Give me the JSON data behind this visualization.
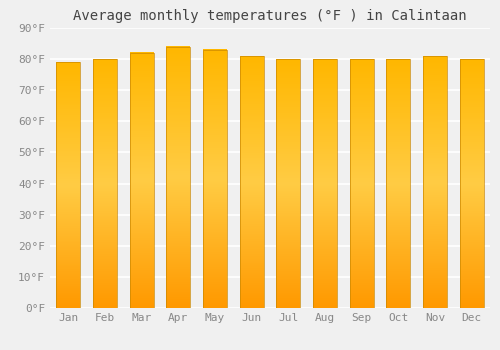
{
  "months": [
    "Jan",
    "Feb",
    "Mar",
    "Apr",
    "May",
    "Jun",
    "Jul",
    "Aug",
    "Sep",
    "Oct",
    "Nov",
    "Dec"
  ],
  "values": [
    79.0,
    80.0,
    82.0,
    84.0,
    83.0,
    81.0,
    80.0,
    80.0,
    80.0,
    80.0,
    81.0,
    80.0
  ],
  "bar_color_top": "#FFB700",
  "bar_color_mid": "#FFCC44",
  "bar_color_bottom": "#FF9900",
  "bar_edge_color": "#CC8800",
  "title": "Average monthly temperatures (°F ) in Calintaan",
  "ylim": [
    0,
    90
  ],
  "yticks": [
    0,
    10,
    20,
    30,
    40,
    50,
    60,
    70,
    80,
    90
  ],
  "ytick_labels": [
    "0°F",
    "10°F",
    "20°F",
    "30°F",
    "40°F",
    "50°F",
    "60°F",
    "70°F",
    "80°F",
    "90°F"
  ],
  "bg_color": "#F0F0F0",
  "grid_color": "#FFFFFF",
  "title_fontsize": 10,
  "tick_fontsize": 8,
  "bar_width": 0.65
}
